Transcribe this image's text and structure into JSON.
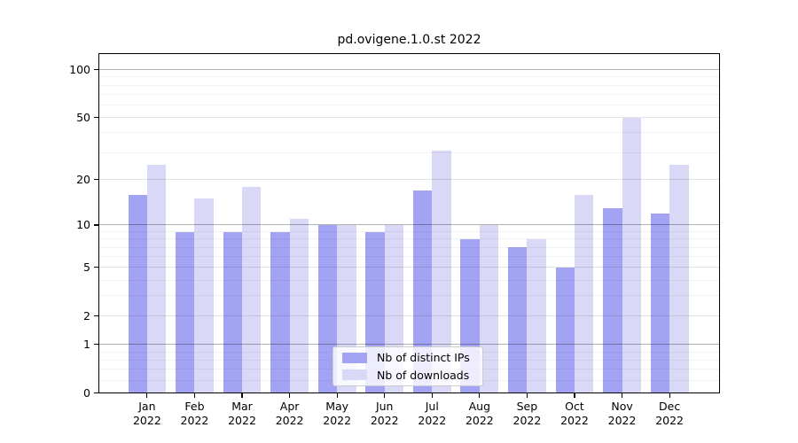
{
  "chart_data": {
    "type": "bar",
    "title": "pd.ovigene.1.0.st 2022",
    "categories": [
      {
        "month": "Jan",
        "year": "2022"
      },
      {
        "month": "Feb",
        "year": "2022"
      },
      {
        "month": "Mar",
        "year": "2022"
      },
      {
        "month": "Apr",
        "year": "2022"
      },
      {
        "month": "May",
        "year": "2022"
      },
      {
        "month": "Jun",
        "year": "2022"
      },
      {
        "month": "Jul",
        "year": "2022"
      },
      {
        "month": "Aug",
        "year": "2022"
      },
      {
        "month": "Sep",
        "year": "2022"
      },
      {
        "month": "Oct",
        "year": "2022"
      },
      {
        "month": "Nov",
        "year": "2022"
      },
      {
        "month": "Dec",
        "year": "2022"
      }
    ],
    "series": [
      {
        "name": "Nb of distinct IPs",
        "color": "#a3a3f3",
        "values": [
          16,
          9,
          9,
          9,
          10,
          9,
          17,
          8,
          7,
          5,
          13,
          12
        ]
      },
      {
        "name": "Nb of downloads",
        "color": "#d9d9f7",
        "values": [
          25,
          15,
          18,
          11,
          10,
          10,
          31,
          10,
          8,
          16,
          50,
          25
        ]
      }
    ],
    "y_axis": {
      "scale": "log10(value+1)",
      "tick_values": [
        0,
        1,
        2,
        5,
        10,
        20,
        50,
        100
      ],
      "tick_labels": [
        "0",
        "1",
        "2",
        "5",
        "10",
        "20",
        "50",
        "100"
      ],
      "decade_gridlines": [
        1,
        10,
        100
      ],
      "mid_gridlines": [
        2,
        5,
        20,
        50
      ],
      "minor_gridlines": [
        0.2,
        0.4,
        0.6,
        0.8,
        3,
        4,
        6,
        7,
        8,
        9,
        30,
        40,
        60,
        70,
        80,
        90
      ],
      "ylim": [
        0,
        125
      ]
    },
    "legend_position": "lower center inside",
    "grid": true,
    "xlabel": "",
    "ylabel": ""
  }
}
